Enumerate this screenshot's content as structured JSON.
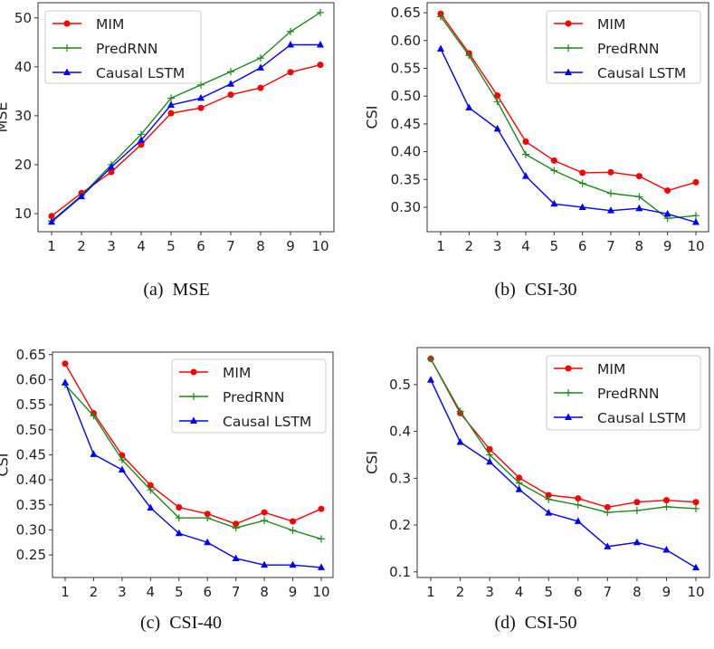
{
  "legend_placement": "top-right",
  "series_colors": {
    "MIM": "#ff0000",
    "PredRNN": "#1a8a1a",
    "Causal LSTM": "#0000ff"
  },
  "chart_data": [
    {
      "type": "line",
      "caption": "(a)  MSE",
      "ylabel": "MSE",
      "xlabel": "",
      "x": [
        1,
        2,
        3,
        4,
        5,
        6,
        7,
        8,
        9,
        10
      ],
      "xticks": [
        "1",
        "2",
        "3",
        "4",
        "5",
        "6",
        "7",
        "8",
        "9",
        "10"
      ],
      "yticks": [
        10,
        20,
        30,
        40,
        50
      ],
      "ytick_labels": [
        "10",
        "20",
        "30",
        "40",
        "50"
      ],
      "ylim": [
        6.3,
        53.1
      ],
      "grid": false,
      "series": [
        {
          "name": "MIM",
          "marker": "circle",
          "values": [
            9.5,
            14.2,
            18.5,
            24.1,
            30.5,
            31.6,
            34.3,
            35.7,
            38.9,
            40.4
          ]
        },
        {
          "name": "PredRNN",
          "marker": "plus",
          "values": [
            8.5,
            13.7,
            20.0,
            26.2,
            33.6,
            36.3,
            39.0,
            41.8,
            47.2,
            51.1
          ]
        },
        {
          "name": "Causal LSTM",
          "marker": "triangle",
          "values": [
            8.3,
            13.5,
            19.5,
            25.0,
            32.2,
            33.6,
            36.5,
            39.8,
            44.5,
            44.5
          ]
        }
      ]
    },
    {
      "type": "line",
      "caption": "(b)  CSI-30",
      "ylabel": "CSI",
      "xlabel": "",
      "x": [
        1,
        2,
        3,
        4,
        5,
        6,
        7,
        8,
        9,
        10
      ],
      "xticks": [
        "1",
        "2",
        "3",
        "4",
        "5",
        "6",
        "7",
        "8",
        "9",
        "10"
      ],
      "yticks": [
        0.3,
        0.35,
        0.4,
        0.45,
        0.5,
        0.55,
        0.6,
        0.65
      ],
      "ytick_labels": [
        "0.30",
        "0.35",
        "0.40",
        "0.45",
        "0.50",
        "0.55",
        "0.60",
        "0.65"
      ],
      "ylim": [
        0.256,
        0.668
      ],
      "grid": false,
      "series": [
        {
          "name": "MIM",
          "marker": "circle",
          "values": [
            0.648,
            0.577,
            0.501,
            0.418,
            0.384,
            0.362,
            0.363,
            0.356,
            0.33,
            0.345
          ]
        },
        {
          "name": "PredRNN",
          "marker": "plus",
          "values": [
            0.643,
            0.573,
            0.49,
            0.395,
            0.366,
            0.343,
            0.325,
            0.319,
            0.28,
            0.285
          ]
        },
        {
          "name": "Causal LSTM",
          "marker": "triangle",
          "values": [
            0.585,
            0.479,
            0.441,
            0.356,
            0.306,
            0.3,
            0.294,
            0.298,
            0.288,
            0.273
          ]
        }
      ]
    },
    {
      "type": "line",
      "caption": "(c)  CSI-40",
      "ylabel": "CSI",
      "xlabel": "",
      "x": [
        1,
        2,
        3,
        4,
        5,
        6,
        7,
        8,
        9,
        10
      ],
      "xticks": [
        "1",
        "2",
        "3",
        "4",
        "5",
        "6",
        "7",
        "8",
        "9",
        "10"
      ],
      "yticks": [
        0.25,
        0.3,
        0.35,
        0.4,
        0.45,
        0.5,
        0.55,
        0.6,
        0.65
      ],
      "ytick_labels": [
        "0.25",
        "0.30",
        "0.35",
        "0.40",
        "0.45",
        "0.50",
        "0.55",
        "0.60",
        "0.65"
      ],
      "ylim": [
        0.205,
        0.655
      ],
      "grid": false,
      "series": [
        {
          "name": "MIM",
          "marker": "circle",
          "values": [
            0.632,
            0.533,
            0.449,
            0.389,
            0.345,
            0.332,
            0.312,
            0.335,
            0.317,
            0.342
          ]
        },
        {
          "name": "PredRNN",
          "marker": "plus",
          "values": [
            0.59,
            0.528,
            0.44,
            0.38,
            0.324,
            0.324,
            0.304,
            0.319,
            0.299,
            0.282
          ]
        },
        {
          "name": "Causal LSTM",
          "marker": "triangle",
          "values": [
            0.594,
            0.451,
            0.42,
            0.344,
            0.293,
            0.275,
            0.243,
            0.23,
            0.23,
            0.225
          ]
        }
      ]
    },
    {
      "type": "line",
      "caption": "(d)  CSI-50",
      "ylabel": "CSI",
      "xlabel": "",
      "x": [
        1,
        2,
        3,
        4,
        5,
        6,
        7,
        8,
        9,
        10
      ],
      "xticks": [
        "1",
        "2",
        "3",
        "4",
        "5",
        "6",
        "7",
        "8",
        "9",
        "10"
      ],
      "yticks": [
        0.1,
        0.2,
        0.3,
        0.4,
        0.5
      ],
      "ytick_labels": [
        "0.1",
        "0.2",
        "0.3",
        "0.4",
        "0.5"
      ],
      "ylim": [
        0.088,
        0.579
      ],
      "grid": false,
      "series": [
        {
          "name": "MIM",
          "marker": "circle",
          "values": [
            0.555,
            0.439,
            0.362,
            0.301,
            0.264,
            0.257,
            0.238,
            0.249,
            0.253,
            0.249
          ]
        },
        {
          "name": "PredRNN",
          "marker": "plus",
          "values": [
            0.555,
            0.443,
            0.35,
            0.29,
            0.255,
            0.243,
            0.227,
            0.231,
            0.239,
            0.235
          ]
        },
        {
          "name": "Causal LSTM",
          "marker": "triangle",
          "values": [
            0.51,
            0.377,
            0.335,
            0.276,
            0.226,
            0.208,
            0.154,
            0.163,
            0.147,
            0.109
          ]
        }
      ]
    }
  ]
}
